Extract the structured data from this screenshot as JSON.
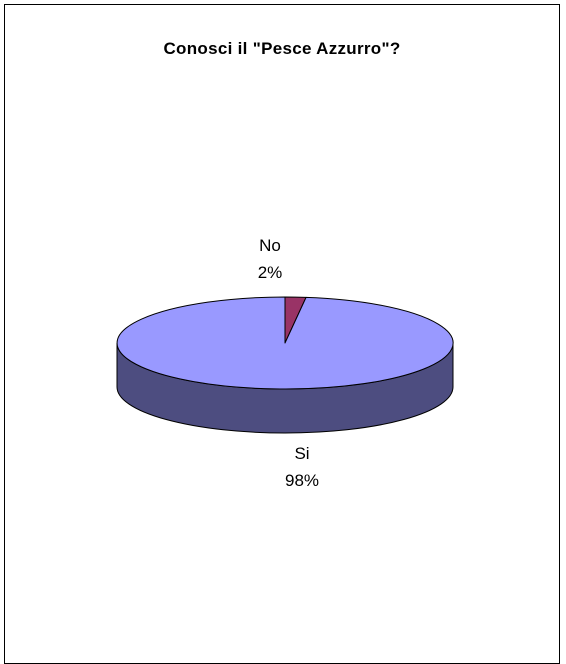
{
  "chart_data": {
    "type": "pie",
    "title": "Conosci il \"Pesce Azzurro\"?",
    "categories": [
      "No",
      "Si"
    ],
    "values": [
      2,
      98
    ],
    "value_labels": [
      "2%",
      "98%"
    ],
    "colors": {
      "Si": "#9999ff",
      "Si_side": "#4d4d80",
      "No": "#993366",
      "No_side": "#4d1a33",
      "outline": "#000000"
    },
    "three_d": true,
    "legend": "none"
  }
}
